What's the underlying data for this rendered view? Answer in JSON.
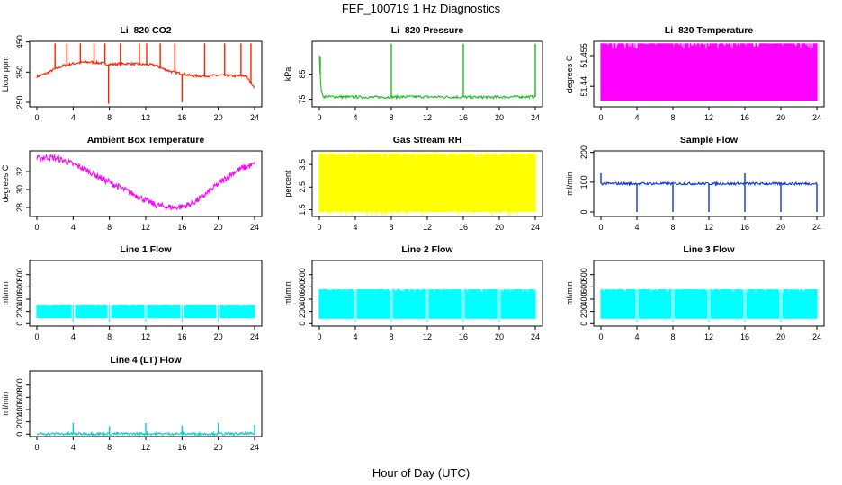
{
  "figure": {
    "title": "FEF_100719  1 Hz Diagnostics",
    "xlabel": "Hour of Day (UTC)"
  },
  "chart_data": [
    {
      "type": "line",
      "title": "Li–820 CO2",
      "ylabel": "Licor ppm",
      "color": "#ff2200",
      "xlim": [
        0,
        24
      ],
      "xticks": [
        0,
        4,
        8,
        12,
        16,
        20,
        24
      ],
      "ylim": [
        235,
        452
      ],
      "yticks": [
        250,
        350,
        450
      ],
      "x": [
        0,
        0.5,
        1,
        2,
        3,
        4,
        5,
        6,
        7,
        8,
        9,
        10,
        11,
        12,
        13,
        14,
        15,
        16,
        17,
        18,
        19,
        20,
        21,
        22,
        23,
        24
      ],
      "y": [
        335,
        340,
        345,
        360,
        372,
        378,
        382,
        383,
        380,
        375,
        377,
        378,
        376,
        375,
        373,
        360,
        350,
        345,
        338,
        337,
        338,
        339,
        338,
        337,
        338,
        300
      ],
      "spikes": [
        [
          2,
          445
        ],
        [
          3.3,
          445
        ],
        [
          4.8,
          445
        ],
        [
          6.3,
          445
        ],
        [
          7.5,
          445
        ],
        [
          7.9,
          245
        ],
        [
          9.2,
          445
        ],
        [
          11.3,
          445
        ],
        [
          12.1,
          445
        ],
        [
          13.6,
          445
        ],
        [
          15.2,
          445
        ],
        [
          16,
          250
        ],
        [
          18.5,
          445
        ],
        [
          20.7,
          445
        ],
        [
          22.5,
          445
        ],
        [
          23.6,
          445
        ]
      ]
    },
    {
      "type": "line",
      "title": "Li–820 Pressure",
      "ylabel": "kPa",
      "color": "#22bb22",
      "xlim": [
        0,
        24
      ],
      "xticks": [
        0,
        4,
        8,
        12,
        16,
        20,
        24
      ],
      "ylim": [
        72,
        98
      ],
      "yticks": [
        75,
        85
      ],
      "x": [
        0,
        0.2,
        0.5,
        2,
        6,
        10,
        14,
        18,
        22,
        24
      ],
      "y": [
        92,
        78,
        76,
        76,
        75.8,
        76,
        75.9,
        75.8,
        76,
        76
      ],
      "spikes": [
        [
          0.1,
          92
        ],
        [
          8,
          97
        ],
        [
          16,
          97
        ],
        [
          24,
          97
        ]
      ]
    },
    {
      "type": "area",
      "title": "Li–820 Temperature",
      "ylabel": "degrees C",
      "color": "#ff00ff",
      "xlim": [
        0,
        24
      ],
      "xticks": [
        0,
        4,
        8,
        12,
        16,
        20,
        24
      ],
      "ylim": [
        51.43,
        51.462
      ],
      "yticks": [
        51.44,
        51.455
      ],
      "band_low": 51.433,
      "band_high": 51.461
    },
    {
      "type": "line",
      "title": "Ambient Box Temperature",
      "ylabel": "degrees C",
      "color": "#ff00ff",
      "xlim": [
        0,
        24
      ],
      "xticks": [
        0,
        4,
        8,
        12,
        16,
        20,
        24
      ],
      "ylim": [
        27,
        34.3
      ],
      "yticks": [
        28,
        30,
        32
      ],
      "x": [
        0,
        1,
        2,
        3,
        4,
        5,
        6,
        7,
        8,
        9,
        10,
        11,
        12,
        13,
        14,
        15,
        16,
        17,
        18,
        19,
        20,
        21,
        22,
        23,
        24
      ],
      "y": [
        33.4,
        33.6,
        33.5,
        33.2,
        32.8,
        32.4,
        31.9,
        31.3,
        30.8,
        30.3,
        29.8,
        29.3,
        28.8,
        28.3,
        28.1,
        28.0,
        28.1,
        28.4,
        29.0,
        29.8,
        30.6,
        31.4,
        32.1,
        32.5,
        32.8
      ],
      "noise": 0.35
    },
    {
      "type": "area",
      "title": "Gas Stream RH",
      "ylabel": "percent",
      "color": "#ffff00",
      "xlim": [
        0,
        24
      ],
      "xticks": [
        0,
        4,
        8,
        12,
        16,
        20,
        24
      ],
      "ylim": [
        1.2,
        4.1
      ],
      "yticks": [
        1.5,
        2.5,
        3.5
      ],
      "band_low": 1.4,
      "band_high": 4.0,
      "dips_to": 1.2
    },
    {
      "type": "line",
      "title": "Sample Flow",
      "ylabel": "ml/min",
      "color": "#1133dd",
      "xlim": [
        0,
        24
      ],
      "xticks": [
        0,
        4,
        8,
        12,
        16,
        20,
        24
      ],
      "ylim": [
        -15,
        205
      ],
      "yticks": [
        0,
        100,
        200
      ],
      "x": [
        0,
        24
      ],
      "y": [
        95,
        95
      ],
      "spikes": [
        [
          0,
          130
        ],
        [
          4,
          0
        ],
        [
          8,
          0
        ],
        [
          12,
          0
        ],
        [
          16,
          130
        ],
        [
          16,
          0
        ],
        [
          20,
          0
        ],
        [
          24,
          0
        ]
      ]
    },
    {
      "type": "area",
      "title": "Line 1 Flow",
      "ylabel": "ml/min",
      "color": "#00ffff",
      "xlim": [
        0,
        24
      ],
      "xticks": [
        0,
        4,
        8,
        12,
        16,
        20,
        24
      ],
      "ylim": [
        -40,
        1030
      ],
      "yticks": [
        0,
        200,
        400,
        600,
        800
      ],
      "band_low": 90,
      "band_high": 300,
      "gaps": [
        4,
        8,
        12,
        16,
        20
      ]
    },
    {
      "type": "area",
      "title": "Line 2 Flow",
      "ylabel": "ml/min",
      "color": "#00ffff",
      "xlim": [
        0,
        24
      ],
      "xticks": [
        0,
        4,
        8,
        12,
        16,
        20,
        24
      ],
      "ylim": [
        -40,
        1030
      ],
      "yticks": [
        0,
        200,
        400,
        600,
        800
      ],
      "band_low": 80,
      "band_high": 560,
      "gaps": [
        4,
        8,
        12,
        16,
        20
      ]
    },
    {
      "type": "area",
      "title": "Line 3 Flow",
      "ylabel": "ml/min",
      "color": "#00ffff",
      "xlim": [
        0,
        24
      ],
      "xticks": [
        0,
        4,
        8,
        12,
        16,
        20,
        24
      ],
      "ylim": [
        -40,
        1030
      ],
      "yticks": [
        0,
        200,
        400,
        600,
        800
      ],
      "band_low": 80,
      "band_high": 560,
      "gaps": [
        4,
        8,
        12,
        16,
        20
      ]
    },
    {
      "type": "line",
      "title": "Line 4 (LT) Flow",
      "ylabel": "ml/min",
      "color": "#00cccc",
      "xlim": [
        0,
        24
      ],
      "xticks": [
        0,
        4,
        8,
        12,
        16,
        20,
        24
      ],
      "ylim": [
        -40,
        1030
      ],
      "yticks": [
        0,
        200,
        400,
        600,
        800
      ],
      "x": [
        0,
        24
      ],
      "y": [
        5,
        5
      ],
      "spikes": [
        [
          4,
          180
        ],
        [
          8,
          130
        ],
        [
          12,
          180
        ],
        [
          16,
          140
        ],
        [
          20,
          180
        ],
        [
          24,
          150
        ]
      ]
    }
  ]
}
